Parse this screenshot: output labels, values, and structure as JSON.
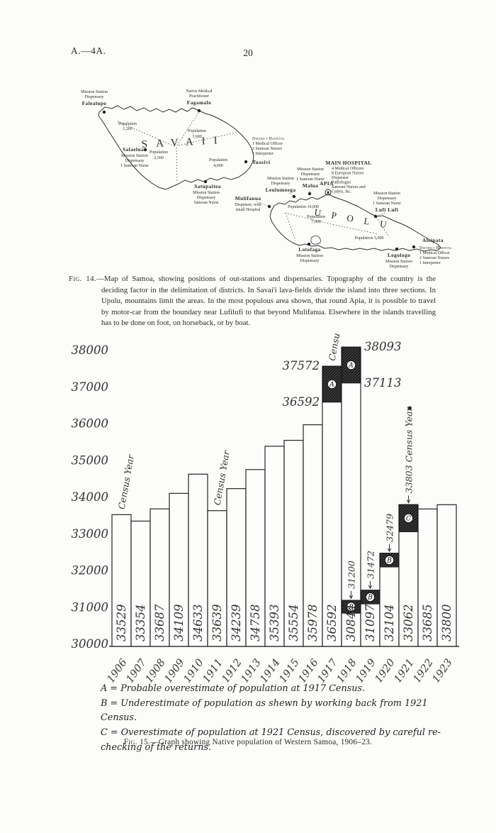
{
  "page": {
    "doc_ref": "A.—4A.",
    "page_number": "20"
  },
  "fig14": {
    "caption_label": "Fig. 14.",
    "caption_body": "—Map of Samoa, showing positions of out-stations and dispensaries.  Topography of the country is the deciding factor in the delimitation of districts.  In Savai'i lava-fields divide the island into three sections.  In Upolu, mountains limit the areas.  In the most populous area shown, that round Apia, it is possible to travel by motor-car from the boundary near Lufilufi to that beyond Mulifanua.  Elsewhere in the islands travelling has to be done on foot, on horseback, or by boat.",
    "islands": [
      {
        "name": "SAVAII"
      },
      {
        "name": "UPOLU"
      }
    ],
    "labels": [
      {
        "lines": [
          {
            "t": "Mission Station"
          },
          {
            "t": "Dispensary"
          },
          {
            "t": "Falealupo",
            "b": true
          }
        ]
      },
      {
        "lines": [
          {
            "t": "Native Medical"
          },
          {
            "t": "Practitioner"
          },
          {
            "t": "Fagamalo",
            "b": true
          }
        ]
      },
      {
        "lines": [
          {
            "t": "Population"
          },
          {
            "t": "1,200"
          }
        ]
      },
      {
        "lines": [
          {
            "t": "Population"
          },
          {
            "t": "3,600"
          }
        ]
      },
      {
        "lines": [
          {
            "t": "Population"
          },
          {
            "t": "2,300"
          }
        ]
      },
      {
        "lines": [
          {
            "t": "Population"
          },
          {
            "t": "4,000"
          }
        ]
      },
      {
        "lines": [
          {
            "t": "Salaelua",
            "b": true
          },
          {
            "t": "Mission Station"
          },
          {
            "t": "Dispensary"
          },
          {
            "t": "1 Samoan Nurse"
          }
        ]
      },
      {
        "lines": [
          {
            "t": "Satupaitea",
            "b": true
          },
          {
            "t": "Mission Station"
          },
          {
            "t": "Dispensary"
          },
          {
            "t": "Samoan Nurse"
          }
        ]
      },
      {
        "lines": [
          {
            "t": "District Hospital",
            "sc": true
          },
          {
            "t": "1 Medical Officer"
          },
          {
            "t": "2 Samoan Nurses"
          },
          {
            "t": "1 Interpreter"
          },
          {
            "t": "Tuasivi",
            "b": true
          }
        ]
      },
      {
        "lines": [
          {
            "t": "Mission Station"
          },
          {
            "t": "Dispensary"
          },
          {
            "t": "Leulumoega",
            "b": true
          }
        ]
      },
      {
        "lines": [
          {
            "t": "Mission Station"
          },
          {
            "t": "Dispensary"
          },
          {
            "t": "1 Samoan Nurse"
          },
          {
            "t": "Malua",
            "b": true
          }
        ]
      },
      {
        "lines": [
          {
            "t": "MAIN HOSPITAL",
            "b": true
          },
          {
            "t": "4 Medical Officers"
          },
          {
            "t": "8 European Nurses"
          },
          {
            "t": "Dispenser"
          },
          {
            "t": "Pathologist"
          },
          {
            "t": "Samoan Nurses and"
          },
          {
            "t": "Cadets, &c."
          },
          {
            "t": "APIA",
            "b": true
          }
        ]
      },
      {
        "lines": [
          {
            "t": "Mission Station"
          },
          {
            "t": "Dispensary"
          },
          {
            "t": "1 Samoan Nurse"
          },
          {
            "t": "Lufi Lufi",
            "b": true
          }
        ]
      },
      {
        "lines": [
          {
            "t": "Mulifanua",
            "b": true
          },
          {
            "t": "Dispenser, with"
          },
          {
            "t": "small Hospital"
          }
        ]
      },
      {
        "lines": [
          {
            "t": "Population 14,000"
          }
        ]
      },
      {
        "lines": [
          {
            "t": "Population"
          },
          {
            "t": "7,000"
          }
        ]
      },
      {
        "lines": [
          {
            "t": "Population  5,000"
          }
        ]
      },
      {
        "lines": [
          {
            "t": "Lotofaga",
            "b": true
          },
          {
            "t": "Mission Station"
          },
          {
            "t": "Dispensary"
          }
        ]
      },
      {
        "lines": [
          {
            "t": "Logologo",
            "b": true
          },
          {
            "t": "Mission Station"
          },
          {
            "t": "Dispensary"
          }
        ]
      },
      {
        "lines": [
          {
            "t": "Aleipata",
            "b": true
          },
          {
            "t": "District Hospital",
            "sc": true
          },
          {
            "t": "1 Medical Officer"
          },
          {
            "t": "2 Samoan Nurses"
          },
          {
            "t": "1 Interpreter"
          }
        ]
      }
    ]
  },
  "fig15": {
    "caption_label": "Fig. 15.",
    "caption_body": "—Graph showing Native population of Western Samoa, 1906–23."
  },
  "chart_data": {
    "type": "bar",
    "title": "Native population of Western Samoa, 1906–23",
    "ylim": [
      30000,
      38000
    ],
    "grid": false,
    "ytick_labels": [
      "30000",
      "31000",
      "32000",
      "33000",
      "34000",
      "35000",
      "36000",
      "37000",
      "38000"
    ],
    "categories": [
      "1906",
      "1907",
      "1908",
      "1909",
      "1910",
      "1911",
      "1912",
      "1913",
      "1914",
      "1915",
      "1916",
      "1917",
      "1918",
      "1919",
      "1920",
      "1921",
      "1922",
      "1923"
    ],
    "bars": [
      {
        "year": "1906",
        "label": "33529",
        "top": 33529
      },
      {
        "year": "1907",
        "label": "33354",
        "top": 33354
      },
      {
        "year": "1908",
        "label": "33687",
        "top": 33687
      },
      {
        "year": "1909",
        "label": "34109",
        "top": 34109
      },
      {
        "year": "1910",
        "label": "34633",
        "top": 34633
      },
      {
        "year": "1911",
        "label": "33639",
        "top": 33639
      },
      {
        "year": "1912",
        "label": "34239",
        "top": 34239
      },
      {
        "year": "1913",
        "label": "34758",
        "top": 34758
      },
      {
        "year": "1914",
        "label": "35393",
        "top": 35393
      },
      {
        "year": "1915",
        "label": "35554",
        "top": 35554
      },
      {
        "year": "1916",
        "label": "35978",
        "top": 35978
      },
      {
        "year": "1917",
        "label": "36592",
        "top": 37572,
        "blocks": [
          {
            "letter": "A",
            "from": 36592,
            "to": 37572
          }
        ]
      },
      {
        "year": "1918",
        "label": "30844",
        "top": 38093,
        "blocks": [
          {
            "letter": "A",
            "from": 37113,
            "to": 38093
          },
          {
            "letter": "B",
            "from": 30844,
            "to": 31200
          }
        ]
      },
      {
        "year": "1919",
        "label": "31097",
        "top": 31472,
        "blocks": [
          {
            "letter": "B",
            "from": 31097,
            "to": 31472
          }
        ]
      },
      {
        "year": "1920",
        "label": "32104",
        "top": 32479,
        "blocks": [
          {
            "letter": "B",
            "from": 32104,
            "to": 32479
          }
        ]
      },
      {
        "year": "1921",
        "label": "33062",
        "top": 33803,
        "blocks": [
          {
            "letter": "C",
            "from": 33062,
            "to": 33803
          }
        ]
      },
      {
        "year": "1922",
        "label": "33685",
        "top": 33685
      },
      {
        "year": "1923",
        "label": "33800",
        "top": 33800
      }
    ],
    "annotations": {
      "left": [
        {
          "text": "37572",
          "value": 37572
        },
        {
          "text": "36592",
          "value": 36592
        }
      ],
      "right": [
        {
          "text": "38093",
          "value": 38093
        },
        {
          "text": "37113",
          "value": 37113
        }
      ],
      "arrows": [
        {
          "text": "31200",
          "bar": "1918",
          "value": 31200
        },
        {
          "text": "31472",
          "bar": "1919",
          "value": 31472
        },
        {
          "text": "32479",
          "bar": "1920",
          "value": 32479
        },
        {
          "text": "33803 Census Year",
          "bar": "1921",
          "value": 33803,
          "dot": true
        }
      ],
      "census_year_label": "Census Year",
      "census_years": [
        "1906",
        "1911",
        "1917"
      ]
    },
    "legend_lines": [
      "A = Probable overestimate of population at 1917 Census.",
      "B = Underestimate of population as shewn by working back from 1921 Census.",
      "C = Overestimate of population at 1921 Census, discovered by careful re-checking of the returns."
    ]
  }
}
